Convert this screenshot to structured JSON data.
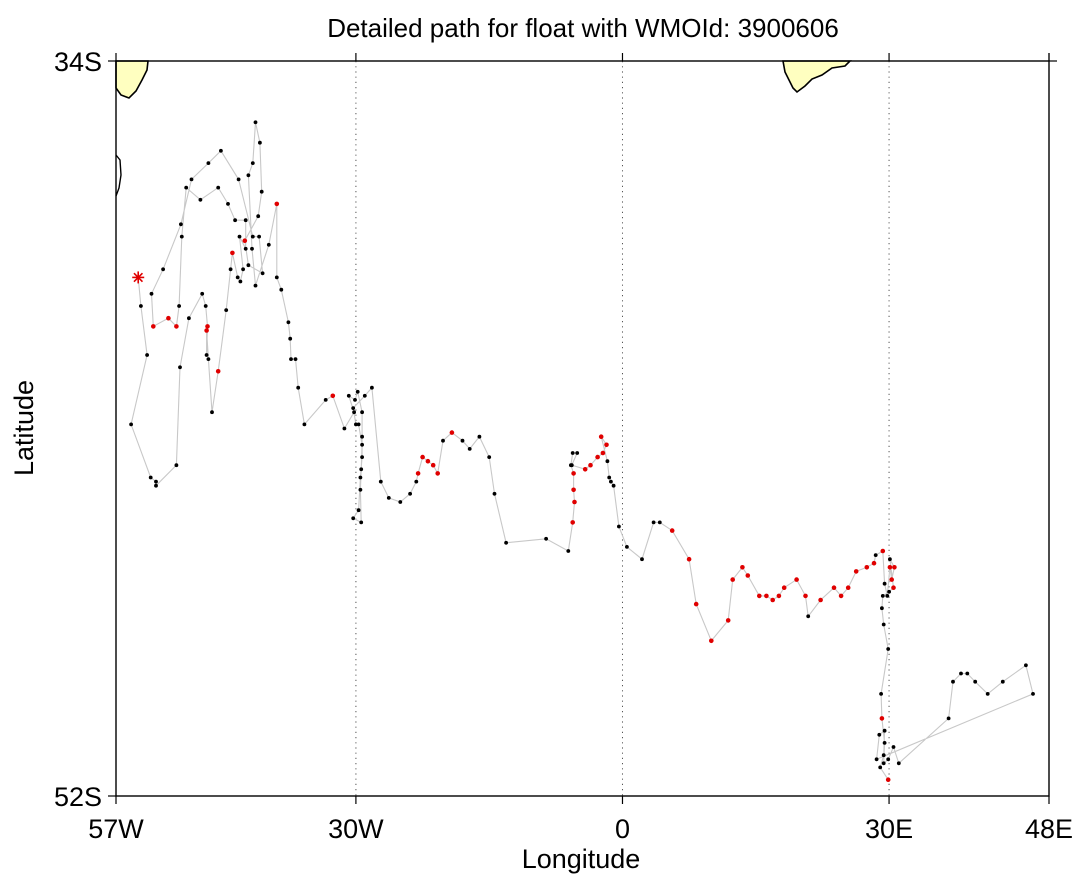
{
  "chart_data": {
    "type": "map-track",
    "title": "Detailed path for float with WMOId: 3900606",
    "xlabel": "Longitude",
    "ylabel": "Latitude",
    "xlim": [
      -57,
      48
    ],
    "ylim": [
      -52,
      -34
    ],
    "xticks": [
      {
        "value": -57,
        "label": "57W"
      },
      {
        "value": -30,
        "label": "30W"
      },
      {
        "value": 0,
        "label": "0"
      },
      {
        "value": 30,
        "label": "30E"
      },
      {
        "value": 48,
        "label": "48E"
      }
    ],
    "yticks": [
      {
        "value": -34,
        "label": "34S"
      },
      {
        "value": -52,
        "label": "52S"
      }
    ],
    "gridlines_x": [
      -30,
      0,
      30
    ],
    "colors": {
      "track": "#c8c8c8",
      "normal_point": "#000000",
      "flagged_point": "#e00000",
      "start_marker": "#e00000",
      "land": "#ffffc0",
      "coastline": "#000000"
    },
    "start": {
      "lon": -54.5,
      "lat": -39.3
    },
    "track": [
      [
        -54.5,
        -39.3,
        0
      ],
      [
        -54.2,
        -40.0,
        0
      ],
      [
        -53.5,
        -41.2,
        0
      ],
      [
        -55.3,
        -42.9,
        0
      ],
      [
        -53.1,
        -44.2,
        0
      ],
      [
        -52.5,
        -44.3,
        0
      ],
      [
        -52.5,
        -44.4,
        0
      ],
      [
        -50.2,
        -43.9,
        0
      ],
      [
        -49.8,
        -41.5,
        0
      ],
      [
        -48.8,
        -40.3,
        0
      ],
      [
        -47.3,
        -39.7,
        0
      ],
      [
        -46.9,
        -40.0,
        0
      ],
      [
        -46.7,
        -40.5,
        1
      ],
      [
        -46.8,
        -41.2,
        0
      ],
      [
        -46.8,
        -40.6,
        1
      ],
      [
        -46.6,
        -41.3,
        0
      ],
      [
        -46.2,
        -42.6,
        0
      ],
      [
        -45.5,
        -41.6,
        1
      ],
      [
        -44.6,
        -40.1,
        0
      ],
      [
        -44.1,
        -39.1,
        0
      ],
      [
        -43.9,
        -38.7,
        1
      ],
      [
        -43.3,
        -39.3,
        0
      ],
      [
        -43.0,
        -39.4,
        0
      ],
      [
        -42.7,
        -39.1,
        0
      ],
      [
        -43.1,
        -38.3,
        0
      ],
      [
        -42.4,
        -38.6,
        0
      ],
      [
        -42.4,
        -37.9,
        0
      ],
      [
        -43.6,
        -37.9,
        0
      ],
      [
        -44.4,
        -37.5,
        0
      ],
      [
        -45.5,
        -37.1,
        0
      ],
      [
        -47.5,
        -37.4,
        0
      ],
      [
        -49.1,
        -37.1,
        0
      ],
      [
        -49.6,
        -38.3,
        0
      ],
      [
        -49.9,
        -40.0,
        0
      ],
      [
        -50.2,
        -40.5,
        1
      ],
      [
        -51.1,
        -40.3,
        1
      ],
      [
        -52.8,
        -40.5,
        1
      ],
      [
        -53.0,
        -39.7,
        0
      ],
      [
        -51.7,
        -39.1,
        0
      ],
      [
        -49.7,
        -38.0,
        0
      ],
      [
        -48.5,
        -36.9,
        0
      ],
      [
        -46.6,
        -36.5,
        0
      ],
      [
        -45.2,
        -36.2,
        0
      ],
      [
        -43.2,
        -36.9,
        0
      ],
      [
        -41.6,
        -38.3,
        0
      ],
      [
        -40.9,
        -38.3,
        0
      ],
      [
        -40.5,
        -39.2,
        0
      ],
      [
        -42.1,
        -39.0,
        0
      ],
      [
        -42.5,
        -38.4,
        1
      ],
      [
        -41.0,
        -37.8,
        0
      ],
      [
        -40.6,
        -37.2,
        0
      ],
      [
        -40.8,
        -36.0,
        0
      ],
      [
        -41.3,
        -35.5,
        0
      ],
      [
        -41.6,
        -36.5,
        0
      ],
      [
        -42.1,
        -36.8,
        0
      ],
      [
        -41.7,
        -38.6,
        0
      ],
      [
        -41.3,
        -39.5,
        0
      ],
      [
        -39.8,
        -38.5,
        0
      ],
      [
        -38.9,
        -37.5,
        1
      ],
      [
        -38.9,
        -39.3,
        0
      ],
      [
        -38.4,
        -39.6,
        0
      ],
      [
        -37.6,
        -40.4,
        0
      ],
      [
        -37.4,
        -40.8,
        0
      ],
      [
        -37.3,
        -41.3,
        0
      ],
      [
        -36.8,
        -41.3,
        0
      ],
      [
        -36.5,
        -42.0,
        0
      ],
      [
        -35.8,
        -42.9,
        0
      ],
      [
        -33.4,
        -42.3,
        0
      ],
      [
        -32.6,
        -42.2,
        1
      ],
      [
        -31.3,
        -43.0,
        0
      ],
      [
        -30.2,
        -42.6,
        0
      ],
      [
        -30.8,
        -42.2,
        0
      ],
      [
        -30.1,
        -42.3,
        0
      ],
      [
        -29.8,
        -42.1,
        0
      ],
      [
        -29.3,
        -42.6,
        0
      ],
      [
        -29.3,
        -43.2,
        0
      ],
      [
        -29.3,
        -43.7,
        0
      ],
      [
        -29.5,
        -44.2,
        0
      ],
      [
        -29.7,
        -45.0,
        0
      ],
      [
        -30.3,
        -45.2,
        0
      ],
      [
        -29.4,
        -45.3,
        0
      ],
      [
        -29.5,
        -44.5,
        0
      ],
      [
        -29.4,
        -44.0,
        0
      ],
      [
        -29.3,
        -43.4,
        0
      ],
      [
        -29.7,
        -42.9,
        0
      ],
      [
        -30.0,
        -42.9,
        0
      ],
      [
        -30.3,
        -42.5,
        0
      ],
      [
        -29.0,
        -42.2,
        0
      ],
      [
        -28.2,
        -42.0,
        0
      ],
      [
        -27.2,
        -44.3,
        0
      ],
      [
        -26.3,
        -44.7,
        0
      ],
      [
        -25.0,
        -44.8,
        0
      ],
      [
        -23.9,
        -44.6,
        0
      ],
      [
        -23.2,
        -44.3,
        0
      ],
      [
        -23.0,
        -44.1,
        1
      ],
      [
        -22.5,
        -43.7,
        1
      ],
      [
        -21.9,
        -43.8,
        1
      ],
      [
        -21.3,
        -43.9,
        1
      ],
      [
        -20.8,
        -44.1,
        1
      ],
      [
        -20.2,
        -43.3,
        0
      ],
      [
        -19.2,
        -43.1,
        1
      ],
      [
        -18.0,
        -43.3,
        0
      ],
      [
        -17.2,
        -43.5,
        0
      ],
      [
        -16.1,
        -43.2,
        0
      ],
      [
        -15.0,
        -43.7,
        0
      ],
      [
        -14.4,
        -44.6,
        0
      ],
      [
        -13.1,
        -45.8,
        0
      ],
      [
        -8.6,
        -45.7,
        0
      ],
      [
        -6.1,
        -46.0,
        0
      ],
      [
        -5.6,
        -45.3,
        1
      ],
      [
        -5.4,
        -44.8,
        1
      ],
      [
        -5.5,
        -44.5,
        1
      ],
      [
        -5.5,
        -44.1,
        1
      ],
      [
        -5.8,
        -43.9,
        0
      ],
      [
        -5.6,
        -43.6,
        0
      ],
      [
        -5.1,
        -43.6,
        0
      ],
      [
        -5.7,
        -43.9,
        0
      ],
      [
        -4.2,
        -44.0,
        1
      ],
      [
        -3.6,
        -43.9,
        1
      ],
      [
        -2.8,
        -43.7,
        1
      ],
      [
        -2.2,
        -43.6,
        1
      ],
      [
        -1.8,
        -43.4,
        1
      ],
      [
        -2.4,
        -43.2,
        1
      ],
      [
        -1.7,
        -43.8,
        0
      ],
      [
        -1.5,
        -44.2,
        0
      ],
      [
        -1.3,
        -44.3,
        0
      ],
      [
        -1.0,
        -44.4,
        0
      ],
      [
        -0.4,
        -45.4,
        0
      ],
      [
        0.5,
        -45.9,
        0
      ],
      [
        2.2,
        -46.2,
        0
      ],
      [
        3.5,
        -45.3,
        0
      ],
      [
        4.2,
        -45.3,
        0
      ],
      [
        5.6,
        -45.5,
        1
      ],
      [
        7.5,
        -46.2,
        1
      ],
      [
        8.3,
        -47.3,
        1
      ],
      [
        10.0,
        -48.2,
        1
      ],
      [
        11.9,
        -47.7,
        1
      ],
      [
        12.4,
        -46.7,
        1
      ],
      [
        13.5,
        -46.4,
        1
      ],
      [
        14.1,
        -46.6,
        1
      ],
      [
        15.4,
        -47.1,
        1
      ],
      [
        16.2,
        -47.1,
        1
      ],
      [
        16.9,
        -47.2,
        1
      ],
      [
        17.6,
        -47.1,
        1
      ],
      [
        18.2,
        -46.9,
        1
      ],
      [
        19.6,
        -46.7,
        1
      ],
      [
        20.6,
        -47.1,
        1
      ],
      [
        20.9,
        -47.6,
        0
      ],
      [
        22.3,
        -47.2,
        1
      ],
      [
        23.8,
        -46.9,
        1
      ],
      [
        24.6,
        -47.1,
        1
      ],
      [
        25.4,
        -46.9,
        1
      ],
      [
        26.3,
        -46.5,
        1
      ],
      [
        27.5,
        -46.4,
        1
      ],
      [
        28.3,
        -46.3,
        1
      ],
      [
        28.5,
        -46.1,
        0
      ],
      [
        29.3,
        -46.0,
        1
      ],
      [
        29.5,
        -46.8,
        0
      ],
      [
        29.8,
        -47.1,
        0
      ],
      [
        30.1,
        -46.4,
        1
      ],
      [
        30.3,
        -46.7,
        1
      ],
      [
        30.6,
        -46.4,
        1
      ],
      [
        30.1,
        -46.2,
        0
      ],
      [
        30.5,
        -46.9,
        1
      ],
      [
        30.0,
        -47.0,
        0
      ],
      [
        29.3,
        -47.1,
        0
      ],
      [
        29.2,
        -47.4,
        0
      ],
      [
        29.4,
        -47.8,
        0
      ],
      [
        29.9,
        -48.4,
        0
      ],
      [
        29.1,
        -49.5,
        0
      ],
      [
        29.2,
        -50.1,
        1
      ],
      [
        29.5,
        -50.7,
        0
      ],
      [
        29.4,
        -51.2,
        0
      ],
      [
        29.9,
        -51.1,
        0
      ],
      [
        30.5,
        -50.8,
        0
      ],
      [
        31.1,
        -51.2,
        0
      ],
      [
        36.7,
        -50.1,
        0
      ],
      [
        37.2,
        -49.2,
        0
      ],
      [
        38.1,
        -49.0,
        0
      ],
      [
        38.8,
        -49.0,
        0
      ],
      [
        39.7,
        -49.2,
        0
      ],
      [
        41.1,
        -49.5,
        0
      ],
      [
        42.8,
        -49.2,
        0
      ],
      [
        45.4,
        -48.8,
        0
      ],
      [
        46.2,
        -49.5,
        0
      ],
      [
        28.6,
        -51.1,
        0
      ],
      [
        28.9,
        -50.5,
        0
      ],
      [
        29.5,
        -50.4,
        0
      ],
      [
        29.4,
        -51.0,
        0
      ],
      [
        29.0,
        -51.3,
        0
      ],
      [
        29.9,
        -51.6,
        1
      ]
    ]
  }
}
